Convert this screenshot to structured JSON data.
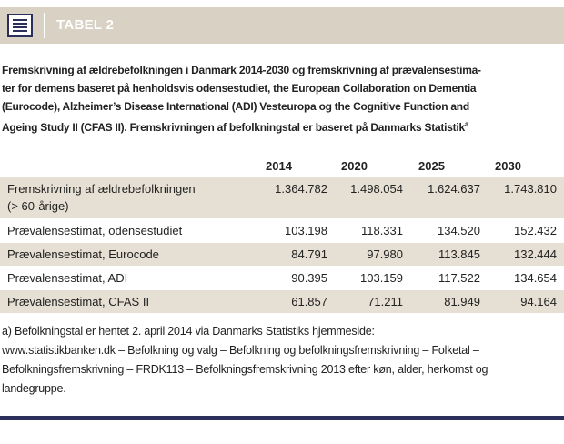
{
  "header": {
    "title": "TABEL 2"
  },
  "caption": {
    "lines": [
      "Fremskrivning af ældrebefolkningen i Danmark 2014-2030 og fremskrivning af prævalensestima-",
      "ter for demens baseret på henholdsvis odensestudiet, the European Collaboration on Dementia",
      "(Eurocode), Alzheimer’s Disease International (ADI) Vesteuropa og the Cognitive Function and",
      "Ageing Study II (CFAS II). Fremskrivningen af befolkningstal er baseret på Danmarks Statistik"
    ],
    "note_mark": "a"
  },
  "table": {
    "columns": [
      "2014",
      "2020",
      "2025",
      "2030"
    ],
    "rows": [
      {
        "label": [
          "Fremskrivning af ældrebefolkningen",
          "(> 60-årige)"
        ],
        "values": [
          "1.364.782",
          "1.498.054",
          "1.624.637",
          "1.743.810"
        ]
      },
      {
        "label": [
          "Prævalensestimat, odensestudiet"
        ],
        "values": [
          "103.198",
          "118.331",
          "134.520",
          "152.432"
        ]
      },
      {
        "label": [
          "Prævalensestimat, Eurocode"
        ],
        "values": [
          "84.791",
          "97.980",
          "113.845",
          "132.444"
        ]
      },
      {
        "label": [
          "Prævalensestimat, ADI"
        ],
        "values": [
          "90.395",
          "103.159",
          "117.522",
          "134.654"
        ]
      },
      {
        "label": [
          "Prævalensestimat, CFAS II"
        ],
        "values": [
          "61.857",
          "71.211",
          "81.949",
          "94.164"
        ]
      }
    ]
  },
  "footnote": {
    "lines": [
      "a) Befolkningstal er hentet 2. april 2014 via Danmarks Statistiks hjemmeside:",
      "www.statistikbanken.dk – Befolkning og valg – Befolkning og befolkningsfremskrivning – Folketal –",
      "Befolkningsfremskrivning – FRDK113 – Befolkningsfremskrivning 2013 efter køn, alder, herkomst og",
      "landegruppe."
    ]
  }
}
